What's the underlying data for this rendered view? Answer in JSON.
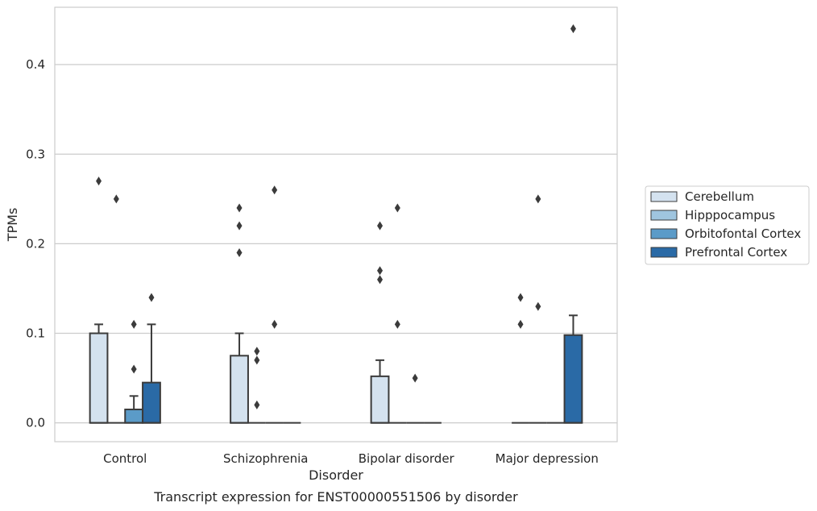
{
  "caption": "Transcript expression for ENST00000551506 by disorder",
  "chart_data": {
    "type": "box",
    "xlabel": "Disorder",
    "ylabel": "TPMs",
    "ylim": [
      -0.021,
      0.464
    ],
    "yticks": [
      0.0,
      0.1,
      0.2,
      0.3,
      0.4
    ],
    "ytick_labels": [
      "0.0",
      "0.1",
      "0.2",
      "0.3",
      "0.4"
    ],
    "grid": "horizontal",
    "legend_position": "right",
    "categories": [
      "Control",
      "Schizophrenia",
      "Bipolar disorder",
      "Major depression"
    ],
    "series": [
      {
        "name": "Cerebellum",
        "color": "#d4e2ef",
        "boxes": [
          {
            "q1": 0.0,
            "median": 0.0,
            "q3": 0.1,
            "whisker_low": 0.0,
            "whisker_high": 0.11,
            "outliers": [
              0.27
            ]
          },
          {
            "q1": 0.0,
            "median": 0.0,
            "q3": 0.075,
            "whisker_low": 0.0,
            "whisker_high": 0.1,
            "outliers": [
              0.19,
              0.22,
              0.24
            ]
          },
          {
            "q1": 0.0,
            "median": 0.0,
            "q3": 0.052,
            "whisker_low": 0.0,
            "whisker_high": 0.07,
            "outliers": [
              0.16,
              0.17,
              0.22
            ]
          },
          {
            "q1": 0.0,
            "median": 0.0,
            "q3": 0.0,
            "whisker_low": 0.0,
            "whisker_high": 0.0,
            "outliers": [
              0.11,
              0.14
            ]
          }
        ]
      },
      {
        "name": "Hipppocampus",
        "color": "#9fc5df",
        "boxes": [
          {
            "q1": 0.0,
            "median": 0.0,
            "q3": 0.0,
            "whisker_low": 0.0,
            "whisker_high": 0.0,
            "outliers": [
              0.25
            ]
          },
          {
            "q1": 0.0,
            "median": 0.0,
            "q3": 0.0,
            "whisker_low": 0.0,
            "whisker_high": 0.0,
            "outliers": [
              0.02,
              0.07,
              0.08
            ]
          },
          {
            "q1": 0.0,
            "median": 0.0,
            "q3": 0.0,
            "whisker_low": 0.0,
            "whisker_high": 0.0,
            "outliers": [
              0.11,
              0.24
            ]
          },
          {
            "q1": 0.0,
            "median": 0.0,
            "q3": 0.0,
            "whisker_low": 0.0,
            "whisker_high": 0.0,
            "outliers": [
              0.13,
              0.25
            ]
          }
        ]
      },
      {
        "name": "Orbitofontal Cortex",
        "color": "#5b9bc8",
        "boxes": [
          {
            "q1": 0.0,
            "median": 0.0,
            "q3": 0.015,
            "whisker_low": 0.0,
            "whisker_high": 0.03,
            "outliers": [
              0.06,
              0.11
            ]
          },
          {
            "q1": 0.0,
            "median": 0.0,
            "q3": 0.0,
            "whisker_low": 0.0,
            "whisker_high": 0.0,
            "outliers": [
              0.11,
              0.26
            ]
          },
          {
            "q1": 0.0,
            "median": 0.0,
            "q3": 0.0,
            "whisker_low": 0.0,
            "whisker_high": 0.0,
            "outliers": [
              0.05
            ]
          },
          {
            "q1": 0.0,
            "median": 0.0,
            "q3": 0.0,
            "whisker_low": 0.0,
            "whisker_high": 0.0,
            "outliers": []
          }
        ]
      },
      {
        "name": "Prefrontal Cortex",
        "color": "#2a6aa6",
        "boxes": [
          {
            "q1": 0.0,
            "median": 0.0,
            "q3": 0.045,
            "whisker_low": 0.0,
            "whisker_high": 0.11,
            "outliers": [
              0.14
            ]
          },
          {
            "q1": 0.0,
            "median": 0.0,
            "q3": 0.0,
            "whisker_low": 0.0,
            "whisker_high": 0.0,
            "outliers": []
          },
          {
            "q1": 0.0,
            "median": 0.0,
            "q3": 0.0,
            "whisker_low": 0.0,
            "whisker_high": 0.0,
            "outliers": []
          },
          {
            "q1": 0.0,
            "median": 0.0,
            "q3": 0.098,
            "whisker_low": 0.0,
            "whisker_high": 0.12,
            "outliers": [
              0.44
            ]
          }
        ]
      }
    ]
  }
}
